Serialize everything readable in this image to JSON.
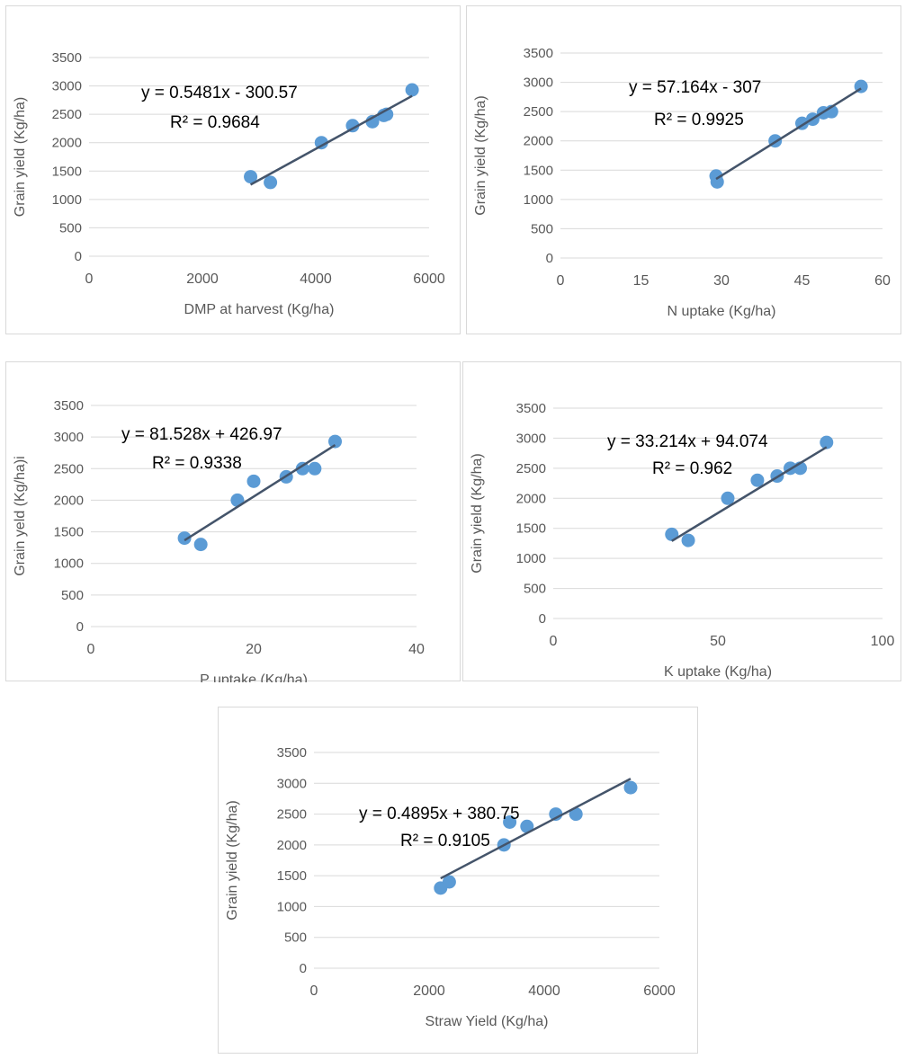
{
  "chart_data": [
    {
      "type": "scatter",
      "xlabel": "DMP at harvest (Kg/ha)",
      "ylabel": "Grain yield (Kg/ha)",
      "xlim": [
        0,
        6000
      ],
      "ylim": [
        0,
        3500
      ],
      "xticks": [
        0,
        2000,
        4000,
        6000
      ],
      "yticks": [
        0,
        500,
        1000,
        1500,
        2000,
        2500,
        3000,
        3500
      ],
      "x": [
        2850,
        3200,
        4100,
        4650,
        5000,
        5200,
        5250,
        5700
      ],
      "y": [
        1400,
        1300,
        2000,
        2300,
        2370,
        2480,
        2500,
        2930
      ],
      "trendline": {
        "slope": 0.5481,
        "intercept": -300.57,
        "x_range": [
          2850,
          5700
        ]
      },
      "equation": "y = 0.5481x - 300.57",
      "r2": "R² = 0.9684",
      "grid": "horizontal",
      "marker_color": "#5b9bd5",
      "line_color": "#44546a"
    },
    {
      "type": "scatter",
      "xlabel": "N uptake (Kg/ha)",
      "ylabel": "Grain yield (Kg/ha)",
      "xlim": [
        0,
        60
      ],
      "ylim": [
        0,
        3500
      ],
      "xticks": [
        0,
        15,
        30,
        45,
        60
      ],
      "yticks": [
        0,
        500,
        1000,
        1500,
        2000,
        2500,
        3000,
        3500
      ],
      "x": [
        29,
        29.2,
        40,
        45,
        47,
        49,
        50.5,
        56
      ],
      "y": [
        1400,
        1300,
        2000,
        2300,
        2370,
        2480,
        2500,
        2930
      ],
      "trendline": {
        "slope": 57.164,
        "intercept": -307,
        "x_range": [
          29,
          56
        ]
      },
      "equation": "y = 57.164x - 307",
      "r2": "R² = 0.9925",
      "grid": "horizontal",
      "marker_color": "#5b9bd5",
      "line_color": "#44546a"
    },
    {
      "type": "scatter",
      "xlabel": "P uptake (Kg/ha)",
      "ylabel": "Grain yeld (Kg/ha)i",
      "xlim": [
        0,
        40
      ],
      "ylim": [
        0,
        3500
      ],
      "xticks": [
        0,
        20,
        40
      ],
      "yticks": [
        0,
        500,
        1000,
        1500,
        2000,
        2500,
        3000,
        3500
      ],
      "x": [
        11.5,
        13.5,
        18,
        20,
        24,
        26,
        27.5,
        30
      ],
      "y": [
        1400,
        1300,
        2000,
        2300,
        2370,
        2500,
        2500,
        2930
      ],
      "trendline": {
        "slope": 81.528,
        "intercept": 426.97,
        "x_range": [
          11.5,
          30
        ]
      },
      "equation": "y = 81.528x + 426.97",
      "r2": "R² = 0.9338",
      "grid": "horizontal",
      "marker_color": "#5b9bd5",
      "line_color": "#44546a"
    },
    {
      "type": "scatter",
      "xlabel": "K uptake (Kg/ha)",
      "ylabel": "Grain yield (Kg/ha)",
      "xlim": [
        0,
        100
      ],
      "ylim": [
        0,
        3500
      ],
      "xticks": [
        0,
        50,
        100
      ],
      "yticks": [
        0,
        500,
        1000,
        1500,
        2000,
        2500,
        3000,
        3500
      ],
      "x": [
        36,
        41,
        53,
        62,
        68,
        72,
        75,
        83
      ],
      "y": [
        1400,
        1300,
        2000,
        2300,
        2370,
        2500,
        2500,
        2930
      ],
      "trendline": {
        "slope": 33.214,
        "intercept": 94.074,
        "x_range": [
          36,
          83
        ]
      },
      "equation": "y = 33.214x + 94.074",
      "r2": "R² = 0.962",
      "grid": "horizontal",
      "marker_color": "#5b9bd5",
      "line_color": "#44546a"
    },
    {
      "type": "scatter",
      "xlabel": "Straw  Yield (Kg/ha)",
      "ylabel": "Grain yield (Kg/ha)",
      "xlim": [
        0,
        6000
      ],
      "ylim": [
        0,
        3500
      ],
      "xticks": [
        0,
        2000,
        4000,
        6000
      ],
      "yticks": [
        0,
        500,
        1000,
        1500,
        2000,
        2500,
        3000,
        3500
      ],
      "x": [
        2200,
        2350,
        3300,
        3400,
        3700,
        4200,
        4550,
        5500
      ],
      "y": [
        1300,
        1400,
        2000,
        2370,
        2300,
        2500,
        2500,
        2930
      ],
      "trendline": {
        "slope": 0.4895,
        "intercept": 380.75,
        "x_range": [
          2200,
          5500
        ]
      },
      "equation": "y = 0.4895x + 380.75",
      "r2": "R² = 0.9105",
      "grid": "horizontal",
      "marker_color": "#5b9bd5",
      "line_color": "#44546a"
    }
  ]
}
